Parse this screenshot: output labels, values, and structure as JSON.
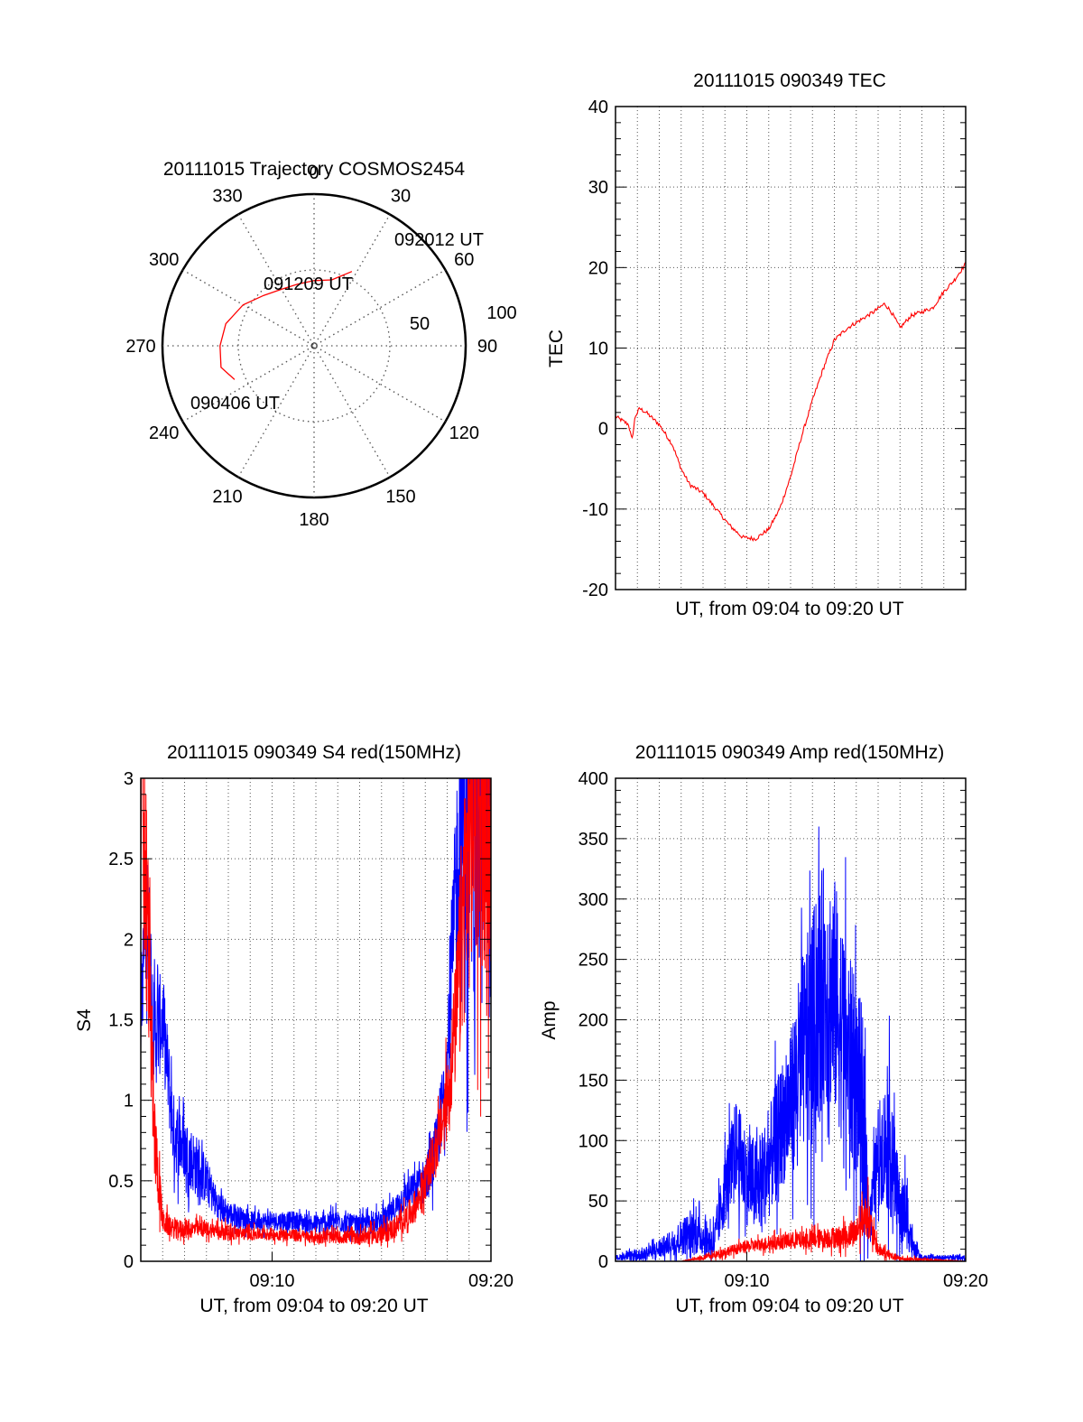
{
  "colors": {
    "red": "#ff0000",
    "blue": "#0000ff",
    "axis": "#000000",
    "grid": "#555555"
  },
  "chart_data": [
    {
      "id": "trajectory",
      "type": "polar",
      "title": "20111015 Trajectory COSMOS2454",
      "angle_labels": [
        "0",
        "30",
        "60",
        "90",
        "120",
        "150",
        "180",
        "210",
        "240",
        "270",
        "300",
        "330"
      ],
      "radial_labels": [
        "50",
        "100"
      ],
      "rlim": [
        0,
        100
      ],
      "series": [
        {
          "color": "red",
          "points": [
            [
              247,
              57
            ],
            [
              257,
              63
            ],
            [
              270,
              62
            ],
            [
              284,
              60
            ],
            [
              300,
              54
            ],
            [
              315,
              47
            ],
            [
              330,
              43
            ],
            [
              345,
              42
            ],
            [
              0,
              43
            ],
            [
              15,
              45
            ],
            [
              27,
              55
            ]
          ]
        }
      ],
      "annotations": [
        {
          "text": "092012 UT",
          "at": [
            27,
            55
          ]
        },
        {
          "text": "091209 UT",
          "at": [
            3,
            42
          ]
        },
        {
          "text": "090406 UT",
          "at": [
            247,
            57
          ]
        }
      ],
      "grid": true
    },
    {
      "id": "tec",
      "type": "line",
      "title": "20111015 090349 TEC",
      "xlabel": "UT, from 09:04 to 09:20 UT",
      "ylabel": "TEC",
      "xlim": [
        0,
        16
      ],
      "ylim": [
        -20,
        40
      ],
      "yticks": [
        "-20",
        "-10",
        "0",
        "10",
        "20",
        "30",
        "40"
      ],
      "xticks": [],
      "grid": true,
      "series": [
        {
          "color": "red",
          "x": [
            0,
            0.3,
            0.6,
            0.75,
            0.9,
            1.1,
            1.4,
            2.0,
            2.6,
            3.0,
            3.4,
            4.0,
            4.6,
            5.2,
            5.8,
            6.4,
            7.0,
            7.5,
            8.0,
            8.5,
            9.0,
            9.5,
            10.0,
            10.6,
            11.2,
            11.8,
            12.3,
            12.6,
            13.0,
            13.5,
            14.0,
            14.5,
            15.0,
            15.5,
            16.0
          ],
          "y": [
            1.5,
            1,
            0.5,
            -1.5,
            1.5,
            2.5,
            2,
            0.5,
            -2,
            -5,
            -7,
            -8,
            -10,
            -12,
            -13.5,
            -13.7,
            -12.5,
            -10,
            -6,
            -1,
            3.5,
            7.5,
            11,
            12.5,
            13.5,
            14.5,
            15.5,
            14.5,
            12.5,
            14,
            14.5,
            15,
            17,
            18.5,
            20.5
          ]
        }
      ]
    },
    {
      "id": "s4",
      "type": "line",
      "title": "20111015 090349 S4 red(150MHz)",
      "xlabel": "UT, from 09:04 to 09:20 UT",
      "ylabel": "S4",
      "xlim": [
        0,
        16
      ],
      "ylim": [
        0,
        3
      ],
      "yticks": [
        "0",
        "0.5",
        "1",
        "1.5",
        "2",
        "2.5",
        "3"
      ],
      "xticks": [
        {
          "at": 6,
          "label": "09:10"
        },
        {
          "at": 16,
          "label": "09:20"
        }
      ],
      "grid": true,
      "series": [
        {
          "color": "blue",
          "x": [
            0,
            0.3,
            0.6,
            1.0,
            1.5,
            2.0,
            2.5,
            3.0,
            3.5,
            4.0,
            5.0,
            6.0,
            7.0,
            8.0,
            9.0,
            10.0,
            11.0,
            11.5,
            12.0,
            12.6,
            13.0,
            13.5,
            14.0,
            14.4,
            14.8,
            15.2,
            15.6,
            16.0
          ],
          "y": [
            1.6,
            2.2,
            1.4,
            1.5,
            0.8,
            0.7,
            0.6,
            0.5,
            0.35,
            0.3,
            0.25,
            0.25,
            0.25,
            0.23,
            0.25,
            0.22,
            0.25,
            0.3,
            0.4,
            0.45,
            0.5,
            0.7,
            1.2,
            2.3,
            3.0,
            3.0,
            3.0,
            3.0
          ],
          "amp": [
            0.25,
            0.45,
            0.35,
            0.3,
            0.25,
            0.2,
            0.2,
            0.15,
            0.1,
            0.08,
            0.06,
            0.06,
            0.06,
            0.06,
            0.07,
            0.06,
            0.07,
            0.08,
            0.1,
            0.12,
            0.15,
            0.2,
            0.3,
            0.6,
            1.5,
            1.5,
            1.5,
            1.5
          ]
        },
        {
          "color": "red",
          "x": [
            0,
            0.3,
            0.6,
            1.0,
            1.5,
            2.0,
            3.0,
            4.0,
            5.0,
            6.0,
            7.0,
            8.0,
            9.0,
            10.0,
            11.0,
            11.5,
            12.0,
            12.6,
            13.0,
            13.5,
            14.0,
            14.4,
            14.8,
            15.2,
            15.6,
            16.0
          ],
          "y": [
            3.0,
            2.2,
            0.8,
            0.25,
            0.2,
            0.2,
            0.2,
            0.18,
            0.17,
            0.17,
            0.16,
            0.15,
            0.15,
            0.15,
            0.17,
            0.2,
            0.25,
            0.35,
            0.5,
            0.7,
            1.0,
            1.5,
            2.3,
            3.0,
            3.0,
            3.0
          ],
          "amp": [
            1.0,
            0.6,
            0.3,
            0.08,
            0.06,
            0.06,
            0.05,
            0.05,
            0.04,
            0.04,
            0.04,
            0.04,
            0.04,
            0.05,
            0.06,
            0.07,
            0.08,
            0.1,
            0.12,
            0.15,
            0.25,
            0.4,
            0.8,
            1.2,
            1.2,
            1.2
          ]
        }
      ]
    },
    {
      "id": "amp",
      "type": "line",
      "title": "20111015 090349 Amp red(150MHz)",
      "xlabel": "UT, from 09:04 to 09:20 UT",
      "ylabel": "Amp",
      "xlim": [
        0,
        16
      ],
      "ylim": [
        0,
        400
      ],
      "yticks": [
        "0",
        "50",
        "100",
        "150",
        "200",
        "250",
        "300",
        "350",
        "400"
      ],
      "xticks": [
        {
          "at": 6,
          "label": "09:10"
        },
        {
          "at": 16,
          "label": "09:20"
        }
      ],
      "grid": true,
      "series": [
        {
          "color": "blue",
          "x": [
            0,
            1.0,
            2.0,
            2.5,
            3.0,
            3.5,
            4.0,
            4.5,
            5.0,
            5.5,
            6.0,
            6.5,
            7.0,
            7.5,
            8.0,
            8.5,
            9.0,
            9.5,
            10.0,
            10.5,
            11.0,
            11.3,
            11.6,
            12.0,
            12.5,
            13.0,
            13.3,
            13.6,
            14.0,
            16.0
          ],
          "y": [
            3,
            5,
            10,
            15,
            20,
            25,
            20,
            15,
            60,
            95,
            70,
            60,
            80,
            110,
            130,
            170,
            190,
            230,
            220,
            180,
            150,
            130,
            30,
            90,
            100,
            40,
            40,
            10,
            3,
            3
          ],
          "amp": [
            2,
            5,
            8,
            10,
            15,
            20,
            15,
            15,
            30,
            40,
            40,
            40,
            45,
            50,
            60,
            80,
            100,
            100,
            100,
            90,
            80,
            80,
            20,
            40,
            60,
            30,
            30,
            8,
            2,
            2
          ]
        },
        {
          "color": "red",
          "x": [
            0,
            3.0,
            4.0,
            4.5,
            5.0,
            6.0,
            7.0,
            8.0,
            9.0,
            10.0,
            10.5,
            11.0,
            11.3,
            11.5,
            11.8,
            12.0,
            12.5,
            13.0,
            16.0
          ],
          "y": [
            0,
            0,
            3,
            5,
            8,
            12,
            15,
            17,
            18,
            20,
            20,
            25,
            35,
            40,
            20,
            10,
            5,
            2,
            0
          ],
          "amp": [
            0,
            0,
            2,
            3,
            4,
            5,
            6,
            7,
            8,
            9,
            10,
            12,
            15,
            20,
            10,
            6,
            4,
            2,
            0
          ]
        }
      ]
    }
  ]
}
